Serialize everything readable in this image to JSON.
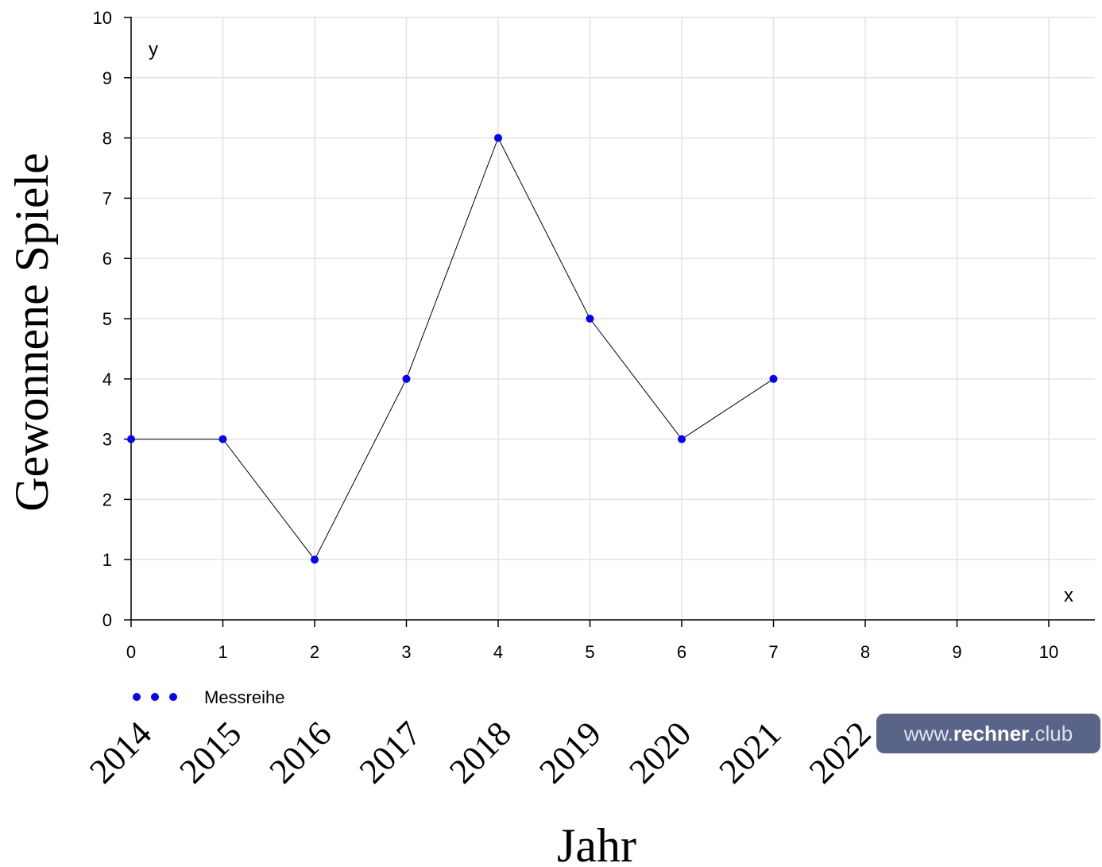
{
  "chart_data": {
    "type": "line",
    "xlabel": "Jahr",
    "ylabel": "Gewonnene Spiele",
    "x_axis_name": "x",
    "y_axis_name": "y",
    "xlim": [
      0,
      10
    ],
    "ylim": [
      0,
      10
    ],
    "x_ticks": [
      "0",
      "1",
      "2",
      "3",
      "4",
      "5",
      "6",
      "7",
      "8",
      "9",
      "10"
    ],
    "y_ticks": [
      "0",
      "1",
      "2",
      "3",
      "4",
      "5",
      "6",
      "7",
      "8",
      "9",
      "10"
    ],
    "categories": [
      "2014",
      "2015",
      "2016",
      "2017",
      "2018",
      "2019",
      "2020",
      "2021",
      "2022"
    ],
    "grid": true,
    "legend_position": "bottom-left",
    "series": [
      {
        "name": "Messreihe",
        "x": [
          0,
          1,
          2,
          3,
          4,
          5,
          6,
          7
        ],
        "y": [
          3,
          3,
          1,
          4,
          8,
          5,
          3,
          4
        ],
        "marker_color": "#0000ff",
        "line_color": "#000000"
      }
    ]
  },
  "watermark": {
    "prefix": "www.",
    "brand": "rechner",
    "suffix": ".club",
    "bg_color": "#5a6488"
  }
}
